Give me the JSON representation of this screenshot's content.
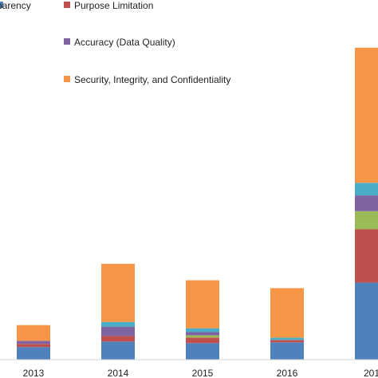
{
  "chart_data": {
    "type": "bar",
    "stacked": true,
    "categories": [
      "2013",
      "2014",
      "2015",
      "2016",
      "201"
    ],
    "legend": [
      {
        "name": "parency",
        "color": "#4F81BD"
      },
      {
        "name": "Purpose Limitation",
        "color": "#C0504D"
      },
      {
        "name": "Accuracy (Data Quality)",
        "color": "#8064A2"
      },
      {
        "name": "Security, Integrity, and Confidentiality",
        "color": "#F79646"
      }
    ],
    "series": [
      {
        "name": "parency",
        "color": "#4F81BD",
        "values": [
          16,
          23,
          21,
          22,
          98
        ]
      },
      {
        "name": "Purpose Limitation",
        "color": "#C0504D",
        "values": [
          4,
          7,
          7,
          3,
          68
        ]
      },
      {
        "color": "#9BBB59",
        "values": [
          0,
          0,
          3,
          0,
          23
        ]
      },
      {
        "name": "Accuracy (Data Quality)",
        "color": "#8064A2",
        "values": [
          4,
          12,
          4,
          0,
          20
        ]
      },
      {
        "color": "#4BACC6",
        "values": [
          0,
          6,
          5,
          3,
          16
        ]
      },
      {
        "name": "Security, Integrity, and Confidentiality",
        "color": "#F79646",
        "values": [
          20,
          74,
          61,
          63,
          172
        ]
      }
    ],
    "ylim": [
      0,
      410
    ],
    "grid": false,
    "legend_position": "top"
  }
}
